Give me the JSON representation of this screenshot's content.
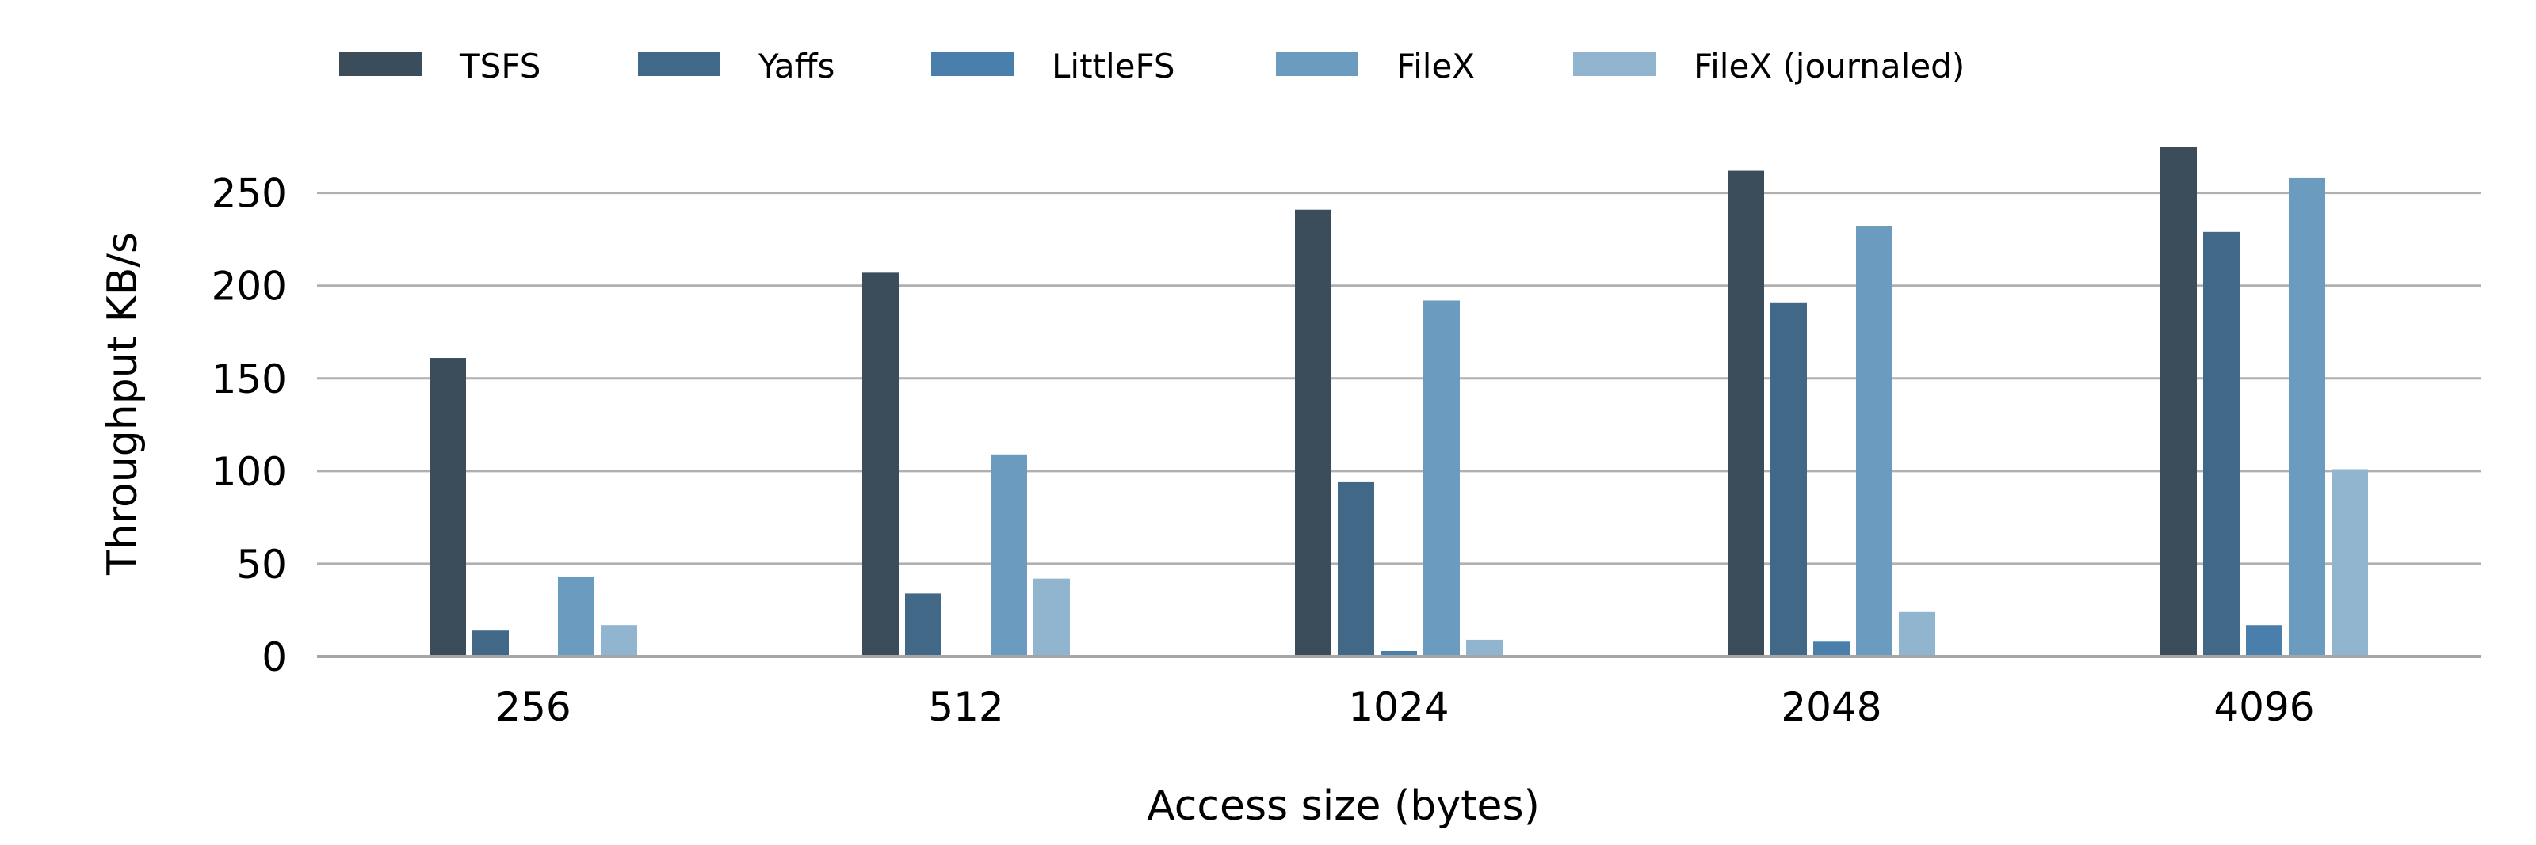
{
  "chart_data": {
    "type": "bar",
    "xlabel": "Access size (bytes)",
    "ylabel": "Throughput KB/s",
    "categories": [
      "256",
      "512",
      "1024",
      "2048",
      "4096"
    ],
    "ylim": [
      0,
      290
    ],
    "yticks": [
      0,
      50,
      100,
      150,
      200,
      250
    ],
    "grid": "horizontal",
    "legend_position": "top",
    "series": [
      {
        "name": "TSFS",
        "color": "#3b4d5b",
        "values": [
          161,
          207,
          241,
          262,
          275
        ]
      },
      {
        "name": "Yaffs",
        "color": "#416886",
        "values": [
          14,
          34,
          94,
          191,
          229
        ]
      },
      {
        "name": "LittleFS",
        "color": "#4a7fab",
        "values": [
          0,
          0,
          3,
          8,
          17
        ]
      },
      {
        "name": "FileX",
        "color": "#6b9cc0",
        "values": [
          43,
          109,
          192,
          232,
          258
        ]
      },
      {
        "name": "FileX (journaled)",
        "color": "#91b5cf",
        "values": [
          17,
          42,
          9,
          24,
          101
        ]
      }
    ]
  }
}
